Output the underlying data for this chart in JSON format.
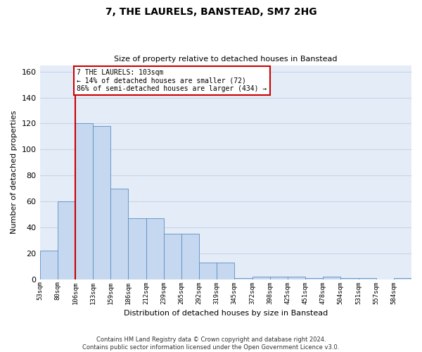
{
  "title": "7, THE LAURELS, BANSTEAD, SM7 2HG",
  "subtitle": "Size of property relative to detached houses in Banstead",
  "xlabel": "Distribution of detached houses by size in Banstead",
  "ylabel": "Number of detached properties",
  "bins": [
    "53sqm",
    "80sqm",
    "106sqm",
    "133sqm",
    "159sqm",
    "186sqm",
    "212sqm",
    "239sqm",
    "265sqm",
    "292sqm",
    "319sqm",
    "345sqm",
    "372sqm",
    "398sqm",
    "425sqm",
    "451sqm",
    "478sqm",
    "504sqm",
    "531sqm",
    "557sqm",
    "584sqm"
  ],
  "bar_values": [
    22,
    60,
    120,
    118,
    70,
    47,
    47,
    35,
    35,
    13,
    13,
    1,
    2,
    2,
    2,
    1,
    2,
    1,
    1,
    0,
    1
  ],
  "bar_color": "#c5d8ef",
  "bar_edge_color": "#5b8ec4",
  "vline_color": "#cc0000",
  "annotation_text": "7 THE LAURELS: 103sqm\n← 14% of detached houses are smaller (72)\n86% of semi-detached houses are larger (434) →",
  "annotation_box_color": "white",
  "annotation_box_edge": "#cc0000",
  "ylim": [
    0,
    165
  ],
  "yticks": [
    0,
    20,
    40,
    60,
    80,
    100,
    120,
    140,
    160
  ],
  "grid_color": "#c8d4e8",
  "background_color": "#e4ecf7",
  "footer1": "Contains HM Land Registry data © Crown copyright and database right 2024.",
  "footer2": "Contains public sector information licensed under the Open Government Licence v3.0."
}
